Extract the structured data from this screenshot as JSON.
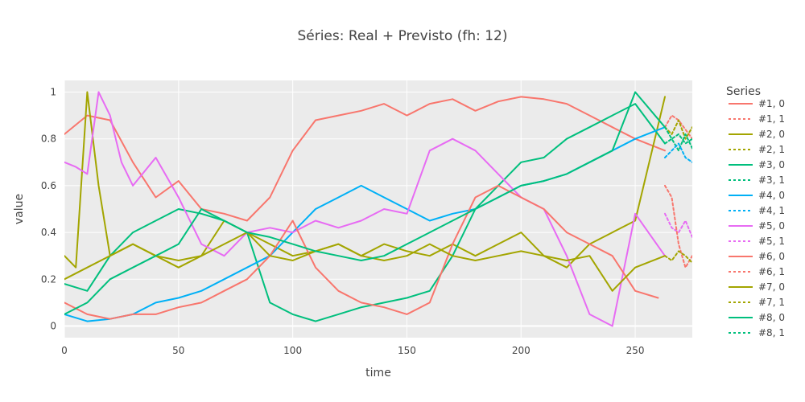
{
  "chart_data": {
    "type": "line",
    "title": "Séries: Real + Previsto (fh: 12)",
    "xlabel": "time",
    "ylabel": "value",
    "xlim": [
      0,
      275
    ],
    "ylim": [
      -0.05,
      1.05
    ],
    "x_ticks": [
      0,
      50,
      100,
      150,
      200,
      250
    ],
    "y_ticks": [
      0,
      0.2,
      0.4,
      0.6,
      0.8,
      1
    ],
    "x_tick_labels": [
      "0",
      "50",
      "100",
      "150",
      "200",
      "250"
    ],
    "y_tick_labels": [
      "0",
      "0.2",
      "0.4",
      "0.6",
      "0.8",
      "1"
    ],
    "grid": true,
    "legend": {
      "title": "Series",
      "position": "right",
      "entries": [
        "#1, 0",
        "#1, 1",
        "#2, 0",
        "#2, 1",
        "#3, 0",
        "#3, 1",
        "#4, 0",
        "#4, 1",
        "#5, 0",
        "#5, 1",
        "#6, 0",
        "#6, 1",
        "#7, 0",
        "#7, 1",
        "#8, 0",
        "#8, 1"
      ]
    },
    "colors": [
      "#F8766D",
      "#A3A500",
      "#00BF7D",
      "#00B0F6",
      "#E76BF3"
    ],
    "series": [
      {
        "name": "#1, 0",
        "color": "#F8766D",
        "dash": "solid",
        "x": [
          0,
          10,
          20,
          30,
          40,
          50,
          60,
          70,
          80,
          90,
          100,
          110,
          120,
          130,
          140,
          150,
          160,
          170,
          180,
          190,
          200,
          210,
          220,
          230,
          240,
          250,
          263
        ],
        "y": [
          0.82,
          0.9,
          0.88,
          0.7,
          0.55,
          0.62,
          0.5,
          0.48,
          0.45,
          0.55,
          0.75,
          0.88,
          0.9,
          0.92,
          0.95,
          0.9,
          0.95,
          0.97,
          0.92,
          0.96,
          0.98,
          0.97,
          0.95,
          0.9,
          0.85,
          0.8,
          0.75
        ]
      },
      {
        "name": "#1, 1",
        "color": "#F8766D",
        "dash": "dot",
        "x": [
          263,
          266,
          269,
          272,
          275
        ],
        "y": [
          0.85,
          0.9,
          0.88,
          0.84,
          0.8
        ]
      },
      {
        "name": "#2, 0",
        "color": "#A3A500",
        "dash": "solid",
        "x": [
          0,
          5,
          10,
          15,
          20,
          30,
          40,
          50,
          60,
          70,
          80,
          90,
          100,
          110,
          120,
          130,
          140,
          150,
          160,
          170,
          180,
          190,
          200,
          210,
          220,
          230,
          240,
          250,
          263
        ],
        "y": [
          0.3,
          0.25,
          1.0,
          0.6,
          0.3,
          0.35,
          0.3,
          0.28,
          0.3,
          0.45,
          0.4,
          0.35,
          0.3,
          0.32,
          0.35,
          0.3,
          0.35,
          0.32,
          0.3,
          0.35,
          0.3,
          0.35,
          0.4,
          0.3,
          0.25,
          0.35,
          0.4,
          0.45,
          0.98
        ]
      },
      {
        "name": "#2, 1",
        "color": "#A3A500",
        "dash": "dot",
        "x": [
          263,
          266,
          269,
          272,
          275
        ],
        "y": [
          0.85,
          0.82,
          0.88,
          0.8,
          0.85
        ]
      },
      {
        "name": "#3, 0",
        "color": "#00BF7D",
        "dash": "solid",
        "x": [
          0,
          10,
          20,
          30,
          40,
          50,
          60,
          70,
          80,
          90,
          100,
          110,
          120,
          130,
          140,
          150,
          160,
          170,
          180,
          190,
          200,
          210,
          220,
          230,
          240,
          250,
          263
        ],
        "y": [
          0.18,
          0.15,
          0.3,
          0.4,
          0.45,
          0.5,
          0.48,
          0.45,
          0.4,
          0.1,
          0.05,
          0.02,
          0.05,
          0.08,
          0.1,
          0.12,
          0.15,
          0.3,
          0.5,
          0.6,
          0.7,
          0.72,
          0.8,
          0.85,
          0.9,
          0.95,
          0.78
        ]
      },
      {
        "name": "#3, 1",
        "color": "#00BF7D",
        "dash": "dot",
        "x": [
          263,
          266,
          269,
          272,
          275
        ],
        "y": [
          0.78,
          0.8,
          0.75,
          0.82,
          0.76
        ]
      },
      {
        "name": "#4, 0",
        "color": "#00B0F6",
        "dash": "solid",
        "x": [
          0,
          10,
          20,
          30,
          40,
          50,
          60,
          70,
          80,
          90,
          100,
          110,
          120,
          130,
          140,
          150,
          160,
          170,
          180,
          190,
          200,
          210,
          220,
          230,
          240,
          250,
          263
        ],
        "y": [
          0.05,
          0.02,
          0.03,
          0.05,
          0.1,
          0.12,
          0.15,
          0.2,
          0.25,
          0.3,
          0.4,
          0.5,
          0.55,
          0.6,
          0.55,
          0.5,
          0.45,
          0.48,
          0.5,
          0.55,
          0.6,
          0.62,
          0.65,
          0.7,
          0.75,
          0.8,
          0.85
        ]
      },
      {
        "name": "#4, 1",
        "color": "#00B0F6",
        "dash": "dot",
        "x": [
          263,
          266,
          269,
          272,
          275
        ],
        "y": [
          0.72,
          0.75,
          0.78,
          0.72,
          0.7
        ]
      },
      {
        "name": "#5, 0",
        "color": "#E76BF3",
        "dash": "solid",
        "x": [
          0,
          5,
          10,
          15,
          20,
          25,
          30,
          40,
          50,
          60,
          70,
          80,
          90,
          100,
          110,
          120,
          130,
          140,
          150,
          160,
          170,
          180,
          190,
          200,
          210,
          220,
          230,
          240,
          250,
          263
        ],
        "y": [
          0.7,
          0.68,
          0.65,
          1.0,
          0.9,
          0.7,
          0.6,
          0.72,
          0.55,
          0.35,
          0.3,
          0.4,
          0.42,
          0.4,
          0.45,
          0.42,
          0.45,
          0.5,
          0.48,
          0.75,
          0.8,
          0.75,
          0.65,
          0.55,
          0.5,
          0.3,
          0.05,
          0.0,
          0.48,
          0.3
        ]
      },
      {
        "name": "#5, 1",
        "color": "#E76BF3",
        "dash": "dot",
        "x": [
          263,
          266,
          269,
          272,
          275
        ],
        "y": [
          0.48,
          0.42,
          0.4,
          0.45,
          0.38
        ]
      },
      {
        "name": "#6, 0",
        "color": "#F8766D",
        "dash": "solid",
        "x": [
          0,
          10,
          20,
          30,
          40,
          50,
          60,
          70,
          80,
          90,
          100,
          110,
          120,
          130,
          140,
          150,
          160,
          170,
          180,
          190,
          200,
          210,
          220,
          230,
          240,
          250,
          260
        ],
        "y": [
          0.1,
          0.05,
          0.03,
          0.05,
          0.05,
          0.08,
          0.1,
          0.15,
          0.2,
          0.3,
          0.45,
          0.25,
          0.15,
          0.1,
          0.08,
          0.05,
          0.1,
          0.35,
          0.55,
          0.6,
          0.55,
          0.5,
          0.4,
          0.35,
          0.3,
          0.15,
          0.12
        ]
      },
      {
        "name": "#6, 1",
        "color": "#F8766D",
        "dash": "dot",
        "x": [
          263,
          266,
          269,
          272,
          275
        ],
        "y": [
          0.6,
          0.55,
          0.35,
          0.25,
          0.3
        ]
      },
      {
        "name": "#7, 0",
        "color": "#A3A500",
        "dash": "solid",
        "x": [
          0,
          10,
          20,
          30,
          40,
          50,
          60,
          70,
          80,
          90,
          100,
          110,
          120,
          130,
          140,
          150,
          160,
          170,
          180,
          190,
          200,
          210,
          220,
          230,
          240,
          250,
          263
        ],
        "y": [
          0.2,
          0.25,
          0.3,
          0.35,
          0.3,
          0.25,
          0.3,
          0.35,
          0.4,
          0.3,
          0.28,
          0.32,
          0.35,
          0.3,
          0.28,
          0.3,
          0.35,
          0.3,
          0.28,
          0.3,
          0.32,
          0.3,
          0.28,
          0.3,
          0.15,
          0.25,
          0.3
        ]
      },
      {
        "name": "#7, 1",
        "color": "#A3A500",
        "dash": "dot",
        "x": [
          263,
          266,
          269,
          272,
          275
        ],
        "y": [
          0.3,
          0.28,
          0.32,
          0.3,
          0.27
        ]
      },
      {
        "name": "#8, 0",
        "color": "#00BF7D",
        "dash": "solid",
        "x": [
          0,
          10,
          20,
          30,
          40,
          50,
          60,
          70,
          80,
          90,
          100,
          110,
          120,
          130,
          140,
          150,
          160,
          170,
          180,
          190,
          200,
          210,
          220,
          230,
          240,
          250,
          263
        ],
        "y": [
          0.05,
          0.1,
          0.2,
          0.25,
          0.3,
          0.35,
          0.5,
          0.45,
          0.4,
          0.38,
          0.35,
          0.32,
          0.3,
          0.28,
          0.3,
          0.35,
          0.4,
          0.45,
          0.5,
          0.55,
          0.6,
          0.62,
          0.65,
          0.7,
          0.75,
          1.0,
          0.85
        ]
      },
      {
        "name": "#8, 1",
        "color": "#00BF7D",
        "dash": "dot",
        "x": [
          263,
          266,
          269,
          272,
          275
        ],
        "y": [
          0.85,
          0.8,
          0.82,
          0.78,
          0.8
        ]
      }
    ]
  }
}
